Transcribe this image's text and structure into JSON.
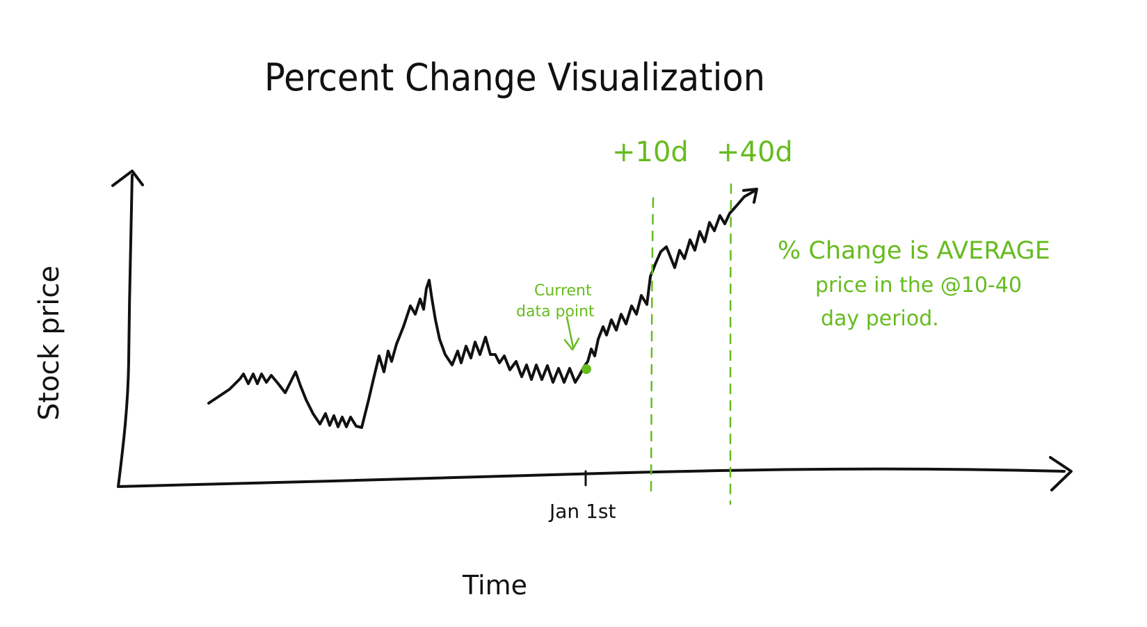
{
  "diagram": {
    "title": "Percent Change Visualization",
    "y_axis_label": "Stock price",
    "x_axis_label": "Time",
    "x_tick_label": "Jan 1st",
    "offset_labels": [
      "+10d",
      "+40d"
    ],
    "current_point_annotation": [
      "Current",
      "data point"
    ],
    "note_lines": [
      "% Change is AVERAGE",
      "price in the @10-40",
      "day period."
    ],
    "colors": {
      "ink": "#111111",
      "highlight": "#66bb1f",
      "background": "#ffffff"
    }
  }
}
